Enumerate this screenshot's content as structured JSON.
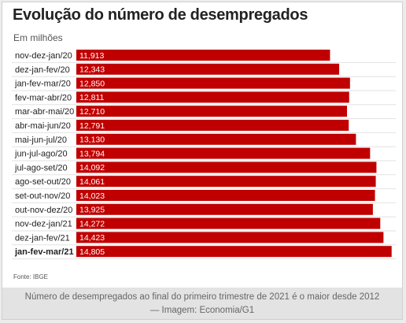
{
  "chart_data": {
    "type": "bar",
    "orientation": "horizontal",
    "title": "Evolução do número de desempregados",
    "subtitle": "Em milhões",
    "categories": [
      "nov-dez-jan/20",
      "dez-jan-fev/20",
      "jan-fev-mar/20",
      "fev-mar-abr/20",
      "mar-abr-mai/20",
      "abr-mai-jun/20",
      "mai-jun-jul/20",
      "jun-jul-ago/20",
      "jul-ago-set/20",
      "ago-set-out/20",
      "set-out-nov/20",
      "out-nov-dez/20",
      "nov-dez-jan/21",
      "dez-jan-fev/21",
      "jan-fev-mar/21"
    ],
    "values": [
      11.913,
      12.343,
      12.85,
      12.811,
      12.71,
      12.791,
      13.13,
      13.794,
      14.092,
      14.061,
      14.023,
      13.925,
      14.272,
      14.423,
      14.805
    ],
    "value_labels": [
      "11,913",
      "12,343",
      "12,850",
      "12,811",
      "12,710",
      "12,791",
      "13,130",
      "13,794",
      "14,092",
      "14,061",
      "14,023",
      "13,925",
      "14,272",
      "14,423",
      "14,805"
    ],
    "highlighted_category": "jan-fev-mar/21",
    "bar_color": "#c00000",
    "xlim": [
      0,
      15
    ]
  },
  "source": "Fonte: IBGE",
  "caption": {
    "line1": "Número de desempregados ao final do primeiro trimestre de 2021 é o maior desde 2012",
    "line2": "— Imagem: Economia/G1"
  }
}
